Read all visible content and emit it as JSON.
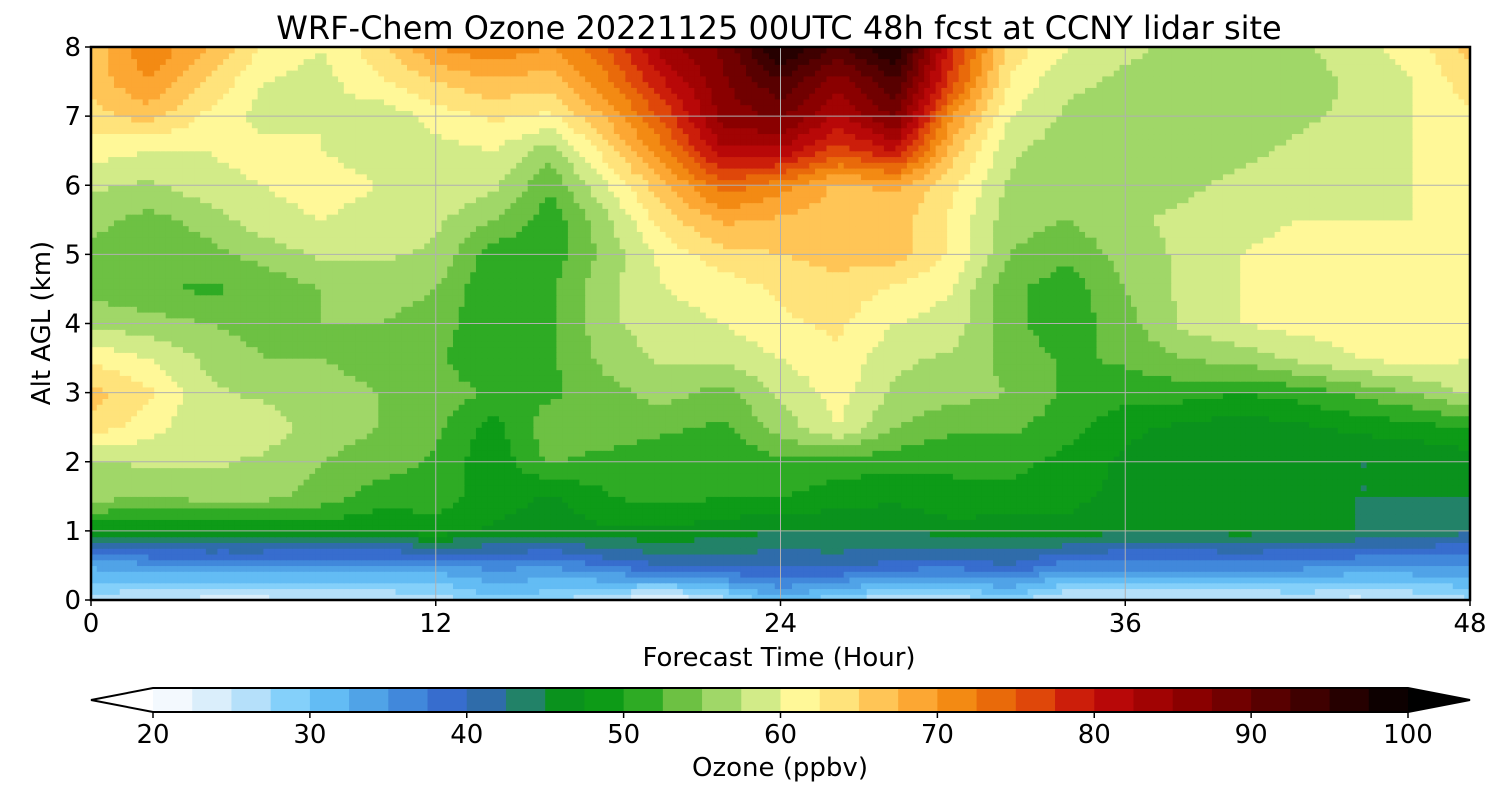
{
  "chart_data": {
    "type": "heatmap",
    "title": "WRF-Chem Ozone  20221125 00UTC 48h fcst at CCNY lidar site",
    "xlabel": "Forecast Time (Hour)",
    "ylabel": "Alt AGL (km)",
    "xlim": [
      0,
      48
    ],
    "ylim": [
      0,
      8
    ],
    "x_ticks": [
      "0",
      "12",
      "24",
      "36",
      "48"
    ],
    "y_ticks": [
      "0",
      "1",
      "2",
      "3",
      "4",
      "5",
      "6",
      "7",
      "8"
    ],
    "grid": true,
    "x": [
      0,
      2,
      4,
      6,
      8,
      10,
      12,
      14,
      16,
      18,
      20,
      22,
      24,
      26,
      28,
      30,
      32,
      34,
      36,
      38,
      40,
      42,
      44,
      46,
      48
    ],
    "y": [
      0,
      0.5,
      1,
      1.5,
      2,
      2.5,
      3,
      3.5,
      4,
      4.5,
      5,
      5.5,
      6,
      6.5,
      7,
      7.5,
      8
    ],
    "z": [
      [
        26,
        25,
        24,
        24,
        25,
        25,
        26,
        29,
        28,
        25,
        22,
        26,
        32,
        28,
        25,
        26,
        28,
        24,
        24,
        24,
        24,
        25,
        24,
        25,
        27
      ],
      [
        33,
        34,
        35,
        35,
        34,
        34,
        34,
        36,
        35,
        38,
        40,
        41,
        40,
        41,
        39,
        38,
        40,
        36,
        36,
        36,
        36,
        36,
        35,
        35,
        35
      ],
      [
        48,
        48,
        47,
        47,
        48,
        48,
        49,
        47,
        46,
        47,
        47,
        46,
        45,
        45,
        45,
        46,
        46,
        47,
        45,
        45,
        46,
        45,
        45,
        44,
        43
      ],
      [
        56,
        55,
        56,
        56,
        54,
        51,
        51,
        49,
        47,
        50,
        51,
        50,
        50,
        49,
        48,
        50,
        49,
        48,
        47,
        46,
        45,
        46,
        45,
        45,
        45
      ],
      [
        57,
        58,
        58,
        57,
        55,
        54,
        52,
        48,
        53,
        51,
        50,
        50,
        52,
        51,
        51,
        50,
        51,
        49,
        47,
        46,
        45,
        45,
        45,
        45,
        46
      ],
      [
        64,
        61,
        58,
        59,
        56,
        55,
        53,
        49,
        54,
        55,
        53,
        52,
        56,
        60,
        55,
        53,
        53,
        51,
        48,
        47,
        46,
        47,
        48,
        49,
        50
      ],
      [
        66,
        63,
        58,
        57,
        56,
        55,
        54,
        52,
        52,
        54,
        56,
        54,
        58,
        61,
        57,
        56,
        55,
        52,
        51,
        51,
        50,
        51,
        53,
        55,
        58
      ],
      [
        62,
        60,
        57,
        55,
        55,
        54,
        53,
        50,
        52,
        56,
        58,
        58,
        60,
        62,
        58,
        57,
        54,
        52,
        53,
        55,
        56,
        58,
        60,
        61,
        60
      ],
      [
        57,
        56,
        55,
        54,
        55,
        55,
        54,
        50,
        52,
        57,
        59,
        60,
        62,
        63,
        60,
        59,
        53,
        51,
        54,
        58,
        60,
        61,
        61,
        61,
        61
      ],
      [
        54,
        53,
        52,
        53,
        55,
        56,
        55,
        50,
        52,
        57,
        60,
        61,
        63,
        64,
        62,
        60,
        53,
        51,
        55,
        58,
        60,
        61,
        61,
        61,
        61
      ],
      [
        54,
        53,
        54,
        56,
        58,
        58,
        57,
        51,
        51,
        56,
        61,
        64,
        65,
        66,
        66,
        62,
        55,
        53,
        56,
        58,
        60,
        61,
        61,
        61,
        61
      ],
      [
        56,
        54,
        56,
        59,
        60,
        59,
        58,
        55,
        51,
        57,
        64,
        68,
        67,
        66,
        66,
        62,
        56,
        55,
        57,
        58,
        59,
        60,
        60,
        60,
        61
      ],
      [
        58,
        57,
        59,
        60,
        61,
        60,
        60,
        58,
        53,
        60,
        67,
        74,
        71,
        67,
        68,
        63,
        57,
        56,
        57,
        57,
        58,
        58,
        59,
        60,
        61
      ],
      [
        61,
        60,
        60,
        61,
        60,
        59,
        59,
        60,
        56,
        64,
        72,
        82,
        82,
        76,
        80,
        66,
        58,
        56,
        56,
        57,
        57,
        58,
        59,
        60,
        61
      ],
      [
        64,
        66,
        62,
        59,
        60,
        58,
        61,
        63,
        62,
        68,
        76,
        86,
        88,
        82,
        88,
        70,
        60,
        57,
        57,
        56,
        55,
        57,
        58,
        60,
        62
      ],
      [
        66,
        70,
        65,
        60,
        59,
        62,
        65,
        67,
        66,
        72,
        80,
        87,
        92,
        86,
        92,
        76,
        62,
        58,
        57,
        56,
        55,
        56,
        58,
        60,
        64
      ],
      [
        66,
        72,
        68,
        62,
        60,
        64,
        70,
        72,
        70,
        75,
        84,
        88,
        98,
        92,
        98,
        78,
        64,
        60,
        58,
        57,
        56,
        57,
        59,
        61,
        66
      ]
    ],
    "colorbar": {
      "label": "Ozone  (ppbv)",
      "min": 20,
      "max": 100,
      "tick_labels": [
        "20",
        "30",
        "40",
        "50",
        "60",
        "70",
        "80",
        "90",
        "100"
      ],
      "extend": "both"
    }
  }
}
